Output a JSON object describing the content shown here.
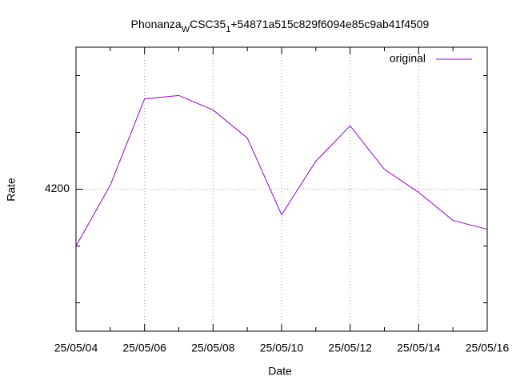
{
  "chart_data": {
    "type": "line",
    "title": [
      "Phonanza",
      "W",
      "CSC35",
      "1",
      "+54871a515c829f6094e85c9ab41f4509"
    ],
    "xlabel": "Date",
    "ylabel": "Rate",
    "categories": [
      "25/05/04",
      null,
      "25/05/06",
      null,
      "25/05/08",
      null,
      "25/05/10",
      null,
      "25/05/12",
      null,
      "25/05/14",
      null,
      "25/05/16"
    ],
    "series": [
      {
        "name": "original",
        "color": "#9400d3",
        "values": [
          4180,
          4201.4,
          4231.8,
          4233,
          4227.9,
          4218,
          4191,
          4209.9,
          4222.3,
          4207,
          4198.9,
          4189,
          4185.9
        ]
      }
    ],
    "ylim": [
      4150,
      4250
    ],
    "yticks": [
      4200
    ],
    "yminorticks": [
      4160,
      4180,
      4220,
      4240
    ],
    "grid": true,
    "legend": "top-right"
  }
}
